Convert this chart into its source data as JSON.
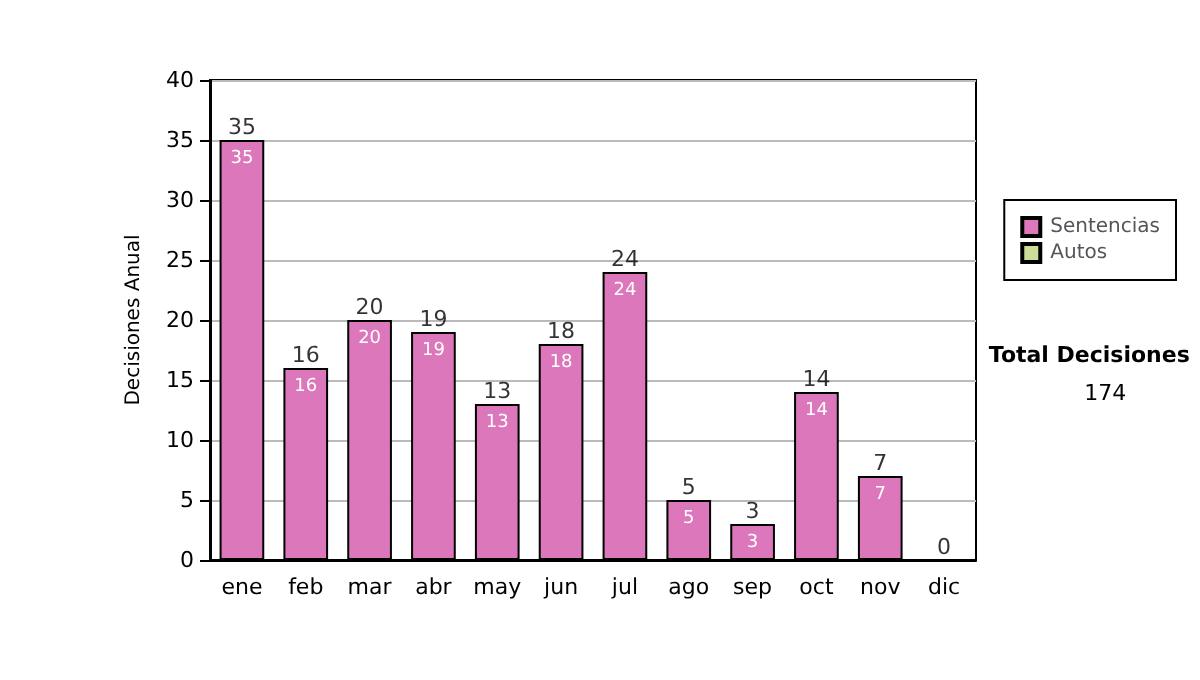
{
  "chart_data": {
    "type": "bar",
    "stacked": true,
    "ylabel": "Decisiones Anual",
    "categories": [
      "ene",
      "feb",
      "mar",
      "abr",
      "may",
      "jun",
      "jul",
      "ago",
      "sep",
      "oct",
      "nov",
      "dic"
    ],
    "series": [
      {
        "name": "Sentencias",
        "color": "#dd77bb",
        "values": [
          35,
          16,
          20,
          19,
          13,
          18,
          24,
          5,
          3,
          14,
          7,
          0
        ],
        "value_labels": [
          "35",
          "16",
          "20",
          "19",
          "13",
          "18",
          "24",
          "5",
          "3",
          "14",
          "7",
          null
        ]
      },
      {
        "name": "Autos",
        "color": "#ccdd99",
        "values": [
          0,
          0,
          0,
          0,
          0,
          0,
          0,
          0,
          0,
          0,
          0,
          0
        ]
      }
    ],
    "totals": [
      "35",
      "16",
      "20",
      "19",
      "13",
      "18",
      "24",
      "5",
      "3",
      "14",
      "7",
      "0"
    ],
    "ylim": [
      0,
      40
    ],
    "yticks": [
      0,
      5,
      10,
      15,
      20,
      25,
      30,
      35,
      40
    ],
    "grid": "y",
    "legend": "right",
    "annotations": [
      "Total Decisiones",
      "174"
    ]
  }
}
